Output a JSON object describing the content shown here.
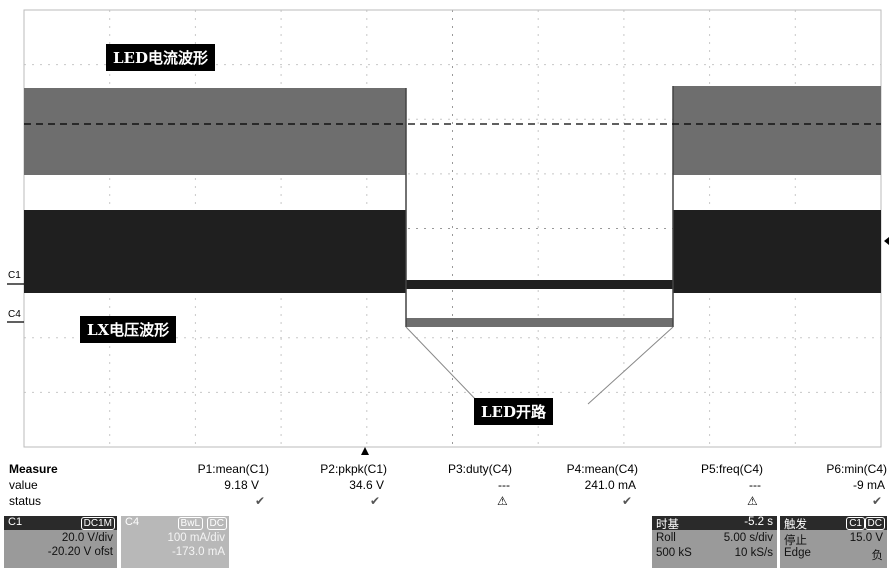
{
  "annotations": {
    "led_current": "LED电流波形",
    "lx_voltage": "LX电压波形",
    "led_open": "LED开路"
  },
  "channel_markers": {
    "c1": "C1",
    "c4": "C4"
  },
  "colors": {
    "trace_c1": "#2a2a2a",
    "trace_c4": "#6e6e6e",
    "c4_panel": "#b8b8b8"
  },
  "measure": {
    "row_labels": {
      "measure": "Measure",
      "value": "value",
      "status": "status"
    },
    "params": [
      {
        "name": "P1:mean(C1)",
        "value": "9.18 V",
        "status": "check"
      },
      {
        "name": "P2:pkpk(C1)",
        "value": "34.6 V",
        "status": "check"
      },
      {
        "name": "P3:duty(C4)",
        "value": "---",
        "status": "warning"
      },
      {
        "name": "P4:mean(C4)",
        "value": "241.0 mA",
        "status": "check"
      },
      {
        "name": "P5:freq(C4)",
        "value": "---",
        "status": "warning"
      },
      {
        "name": "P6:min(C4)",
        "value": "-9 mA",
        "status": "check"
      }
    ]
  },
  "channels": {
    "c1": {
      "label": "C1",
      "coupling": "DC1M",
      "scale": "20.0 V/div",
      "offset": "-20.20 V ofst"
    },
    "c4": {
      "label": "C4",
      "bwl": "BwL",
      "coupling": "DC",
      "scale": "100 mA/div",
      "offset": "-173.0 mA"
    }
  },
  "timebase": {
    "label": "时基",
    "delay": "-5.2 s",
    "mode": "Roll",
    "scale": "5.00 s/div",
    "samples": "500 kS",
    "rate": "10 kS/s"
  },
  "trigger": {
    "label": "触发",
    "source": "C1",
    "coupling": "DC",
    "state": "停止",
    "level": "15.0 V",
    "type": "Edge",
    "slope": "负"
  }
}
